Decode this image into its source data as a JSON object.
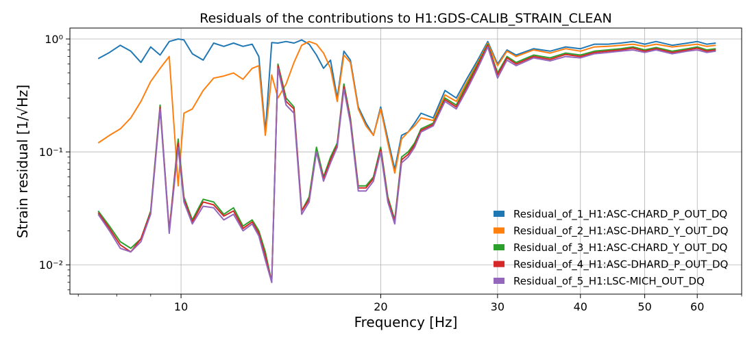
{
  "chart_data": {
    "type": "line",
    "title": "Residuals of the contributions to H1:GDS-CALIB_STRAIN_CLEAN",
    "xlabel": "Frequency [Hz]",
    "ylabel": "Strain residual [1/√Hz]",
    "xscale": "log",
    "yscale": "log",
    "xlim": [
      6.8,
      70
    ],
    "ylim": [
      0.0055,
      1.25
    ],
    "x_tick_labels": [
      "10",
      "20",
      "30",
      "40",
      "50",
      "60"
    ],
    "y_tick_labels": [
      "10⁻²",
      "10⁻¹",
      "10⁰"
    ],
    "grid": true,
    "legend_position": "lower-right",
    "x": [
      7.5,
      7.8,
      8.1,
      8.4,
      8.7,
      9.0,
      9.3,
      9.6,
      9.9,
      10.1,
      10.4,
      10.8,
      11.2,
      11.6,
      12.0,
      12.4,
      12.8,
      13.1,
      13.4,
      13.7,
      14.0,
      14.4,
      14.8,
      15.2,
      15.6,
      16.0,
      16.4,
      16.8,
      17.2,
      17.6,
      18.0,
      18.5,
      19.0,
      19.5,
      20.0,
      20.5,
      21.0,
      21.5,
      22.0,
      22.5,
      23.0,
      24.0,
      25.0,
      26.0,
      27.0,
      28.0,
      29.0,
      30.0,
      31.0,
      32.0,
      34.0,
      36.0,
      38.0,
      40.0,
      42.0,
      44.0,
      46.0,
      48.0,
      50.0,
      52.0,
      55.0,
      58.0,
      60.0,
      62.0,
      64.0
    ],
    "series": [
      {
        "name": "Residual_of_1_H1:ASC-CHARD_P_OUT_DQ",
        "color": "#1f77b4",
        "values": [
          0.67,
          0.76,
          0.88,
          0.78,
          0.62,
          0.85,
          0.72,
          0.95,
          1.0,
          0.98,
          0.74,
          0.65,
          0.92,
          0.86,
          0.92,
          0.86,
          0.9,
          0.7,
          0.15,
          0.93,
          0.92,
          0.95,
          0.92,
          0.98,
          0.9,
          0.72,
          0.55,
          0.65,
          0.3,
          0.78,
          0.65,
          0.25,
          0.18,
          0.14,
          0.25,
          0.13,
          0.07,
          0.14,
          0.15,
          0.18,
          0.22,
          0.2,
          0.35,
          0.3,
          0.45,
          0.65,
          0.95,
          0.6,
          0.8,
          0.72,
          0.82,
          0.78,
          0.85,
          0.82,
          0.9,
          0.9,
          0.92,
          0.95,
          0.9,
          0.95,
          0.88,
          0.92,
          0.95,
          0.9,
          0.92
        ]
      },
      {
        "name": "Residual_of_2_H1:ASC-DHARD_Y_OUT_DQ",
        "color": "#ff7f0e",
        "values": [
          0.12,
          0.14,
          0.16,
          0.2,
          0.28,
          0.42,
          0.55,
          0.7,
          0.05,
          0.22,
          0.24,
          0.35,
          0.45,
          0.47,
          0.5,
          0.44,
          0.55,
          0.58,
          0.14,
          0.48,
          0.3,
          0.4,
          0.62,
          0.88,
          0.95,
          0.9,
          0.75,
          0.55,
          0.28,
          0.72,
          0.62,
          0.24,
          0.17,
          0.14,
          0.24,
          0.12,
          0.065,
          0.13,
          0.15,
          0.17,
          0.2,
          0.19,
          0.32,
          0.28,
          0.42,
          0.62,
          0.92,
          0.58,
          0.78,
          0.7,
          0.8,
          0.75,
          0.82,
          0.78,
          0.85,
          0.86,
          0.88,
          0.9,
          0.86,
          0.9,
          0.85,
          0.88,
          0.9,
          0.86,
          0.88
        ]
      },
      {
        "name": "Residual_of_3_H1:ASC-CHARD_Y_OUT_DQ",
        "color": "#2ca02c",
        "values": [
          0.03,
          0.022,
          0.016,
          0.014,
          0.017,
          0.03,
          0.26,
          0.02,
          0.13,
          0.04,
          0.025,
          0.038,
          0.036,
          0.028,
          0.032,
          0.022,
          0.025,
          0.02,
          0.013,
          0.007,
          0.6,
          0.3,
          0.25,
          0.03,
          0.04,
          0.11,
          0.06,
          0.09,
          0.12,
          0.4,
          0.2,
          0.05,
          0.05,
          0.06,
          0.11,
          0.04,
          0.025,
          0.09,
          0.1,
          0.12,
          0.16,
          0.18,
          0.3,
          0.26,
          0.4,
          0.6,
          0.9,
          0.5,
          0.7,
          0.62,
          0.72,
          0.68,
          0.75,
          0.72,
          0.78,
          0.8,
          0.82,
          0.85,
          0.8,
          0.84,
          0.78,
          0.82,
          0.85,
          0.8,
          0.82
        ]
      },
      {
        "name": "Residual_of_4_H1:ASC-DHARD_P_OUT_DQ",
        "color": "#d62728",
        "values": [
          0.029,
          0.021,
          0.015,
          0.013,
          0.017,
          0.029,
          0.25,
          0.02,
          0.12,
          0.038,
          0.024,
          0.036,
          0.034,
          0.027,
          0.03,
          0.021,
          0.024,
          0.019,
          0.012,
          0.007,
          0.58,
          0.28,
          0.24,
          0.03,
          0.038,
          0.1,
          0.058,
          0.085,
          0.115,
          0.38,
          0.19,
          0.048,
          0.048,
          0.058,
          0.105,
          0.038,
          0.024,
          0.085,
          0.095,
          0.115,
          0.155,
          0.175,
          0.29,
          0.25,
          0.38,
          0.58,
          0.88,
          0.48,
          0.68,
          0.6,
          0.7,
          0.66,
          0.73,
          0.7,
          0.76,
          0.78,
          0.8,
          0.83,
          0.78,
          0.82,
          0.76,
          0.8,
          0.83,
          0.78,
          0.8
        ]
      },
      {
        "name": "Residual_of_5_H1:LSC-MICH_OUT_DQ",
        "color": "#9467bd",
        "values": [
          0.028,
          0.02,
          0.014,
          0.013,
          0.016,
          0.028,
          0.24,
          0.019,
          0.11,
          0.036,
          0.023,
          0.033,
          0.032,
          0.025,
          0.028,
          0.02,
          0.023,
          0.018,
          0.011,
          0.007,
          0.55,
          0.26,
          0.22,
          0.028,
          0.036,
          0.1,
          0.055,
          0.08,
          0.11,
          0.36,
          0.18,
          0.045,
          0.045,
          0.055,
          0.1,
          0.036,
          0.023,
          0.08,
          0.09,
          0.11,
          0.15,
          0.17,
          0.28,
          0.24,
          0.36,
          0.55,
          0.85,
          0.45,
          0.65,
          0.58,
          0.68,
          0.64,
          0.7,
          0.68,
          0.74,
          0.76,
          0.78,
          0.8,
          0.76,
          0.8,
          0.74,
          0.78,
          0.8,
          0.76,
          0.78
        ]
      }
    ]
  }
}
